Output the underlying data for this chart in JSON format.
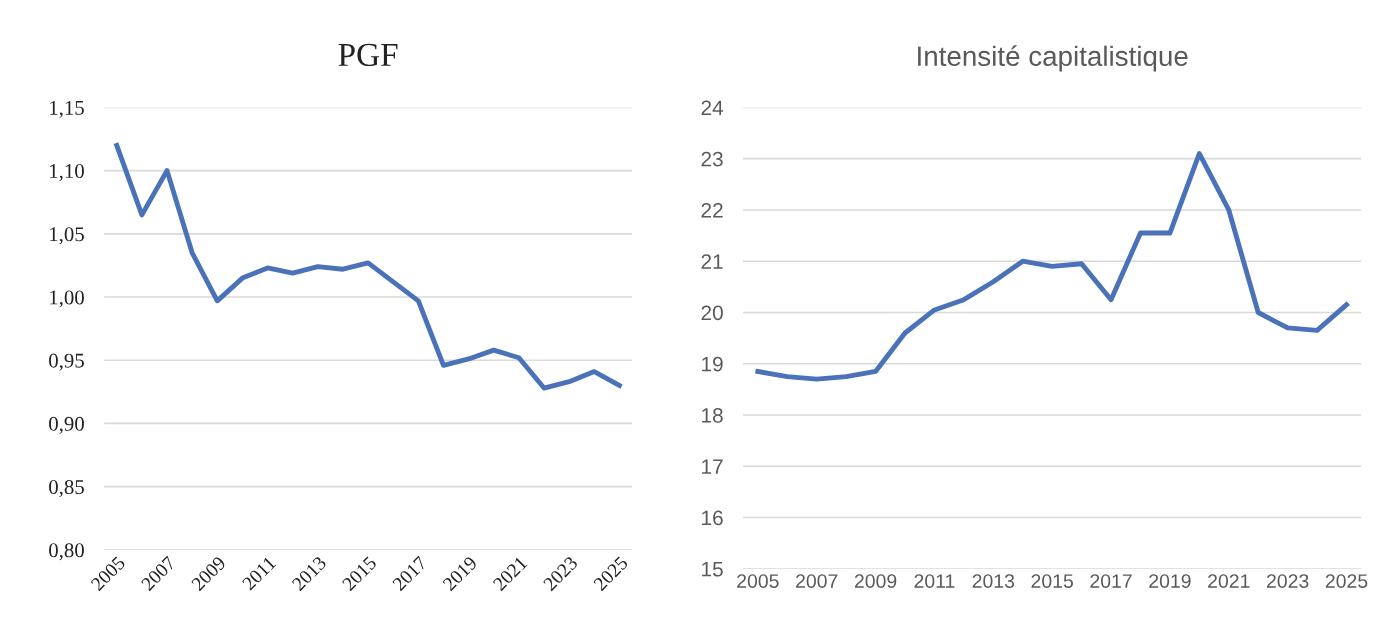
{
  "chart_data": [
    {
      "type": "line",
      "title": "PGF",
      "categories": [
        "2005",
        null,
        "2007",
        null,
        "2009",
        null,
        "2011",
        null,
        "2013",
        null,
        "2015",
        null,
        "2017",
        null,
        "2019",
        null,
        "2021",
        null,
        "2023",
        null,
        "2025"
      ],
      "series": [
        {
          "color": "#4a72b8",
          "values": [
            1.12,
            1.065,
            1.1,
            1.035,
            0.997,
            1.015,
            1.023,
            1.019,
            1.024,
            1.022,
            1.027,
            1.012,
            0.997,
            0.946,
            0.951,
            0.958,
            0.952,
            0.928,
            0.933,
            0.941,
            0.93
          ]
        }
      ],
      "ylim": [
        0.8,
        1.15
      ],
      "yticks": [
        {
          "value": 0.8,
          "label": "0,80"
        },
        {
          "value": 0.85,
          "label": "0,85"
        },
        {
          "value": 0.9,
          "label": "0,90"
        },
        {
          "value": 0.95,
          "label": "0,95"
        },
        {
          "value": 1.0,
          "label": "1,00"
        },
        {
          "value": 1.05,
          "label": "1,05"
        },
        {
          "value": 1.1,
          "label": "1,10"
        },
        {
          "value": 1.15,
          "label": "1,15"
        }
      ],
      "grid": "y",
      "legend": false
    },
    {
      "type": "line",
      "title": "Intensité capitalistique",
      "categories": [
        "2005",
        null,
        "2007",
        null,
        "2009",
        null,
        "2011",
        null,
        "2013",
        null,
        "2015",
        null,
        "2017",
        null,
        "2019",
        null,
        "2021",
        null,
        "2023",
        null,
        "2025"
      ],
      "series": [
        {
          "color": "#4a72b8",
          "values": [
            18.85,
            18.75,
            18.7,
            18.75,
            18.85,
            19.6,
            20.05,
            20.25,
            20.6,
            21.0,
            20.9,
            20.95,
            20.25,
            21.55,
            21.55,
            23.1,
            22.0,
            20.0,
            19.7,
            19.65,
            20.15
          ]
        }
      ],
      "ylim": [
        15,
        24
      ],
      "yticks": [
        15,
        16,
        17,
        18,
        19,
        20,
        21,
        22,
        23,
        24
      ],
      "grid": "y",
      "legend": false
    }
  ]
}
